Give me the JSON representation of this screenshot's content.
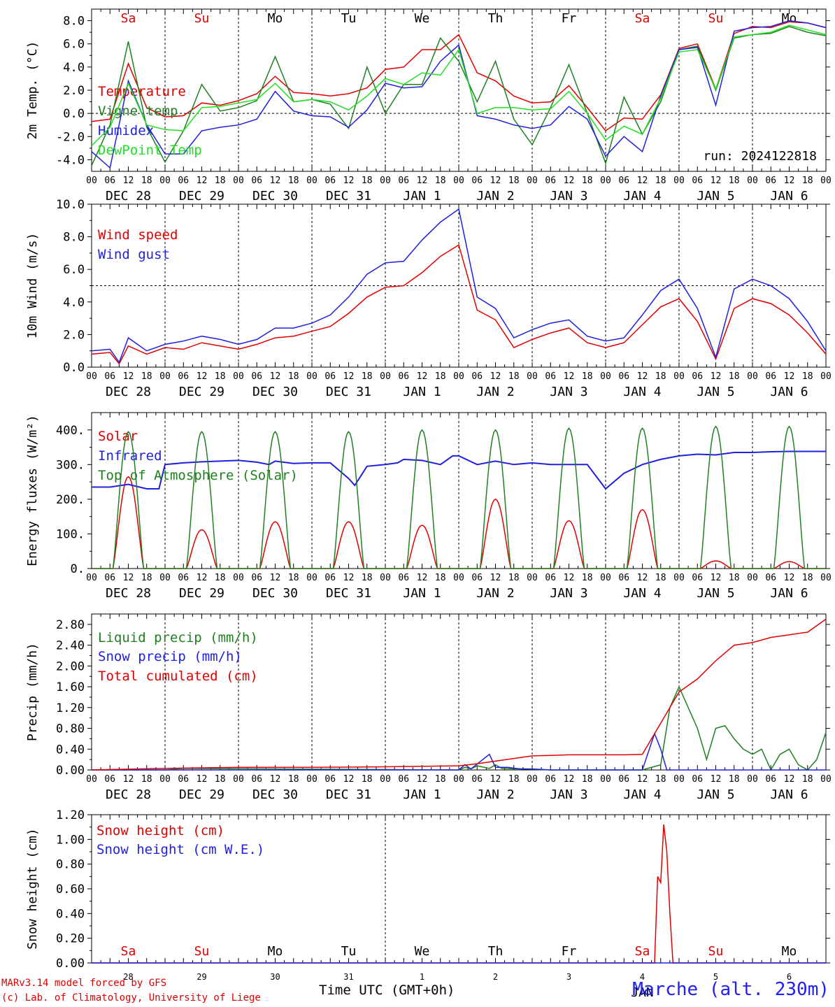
{
  "run_label": "run: 2024122818",
  "xlabel": "Time UTC (GMT+0h)",
  "station": "Marche (alt. 230m)",
  "credits": [
    "MARv3.14 model forced by GFS",
    "(c) Lab. of Climatology, University of Liege"
  ],
  "day_labels": [
    "Sa",
    "Su",
    "Mo",
    "Tu",
    "We",
    "Th",
    "Fr",
    "Sa",
    "Su",
    "Mo"
  ],
  "weekend_days": [
    "Sa",
    "Su"
  ],
  "date_labels": [
    "DEC 28",
    "DEC 29",
    "DEC 30",
    "DEC 31",
    "JAN  1",
    "JAN  2",
    "JAN  3",
    "JAN  4",
    "JAN  5",
    "JAN  6"
  ],
  "hour_ticks": [
    "00",
    "06",
    "12",
    "18"
  ],
  "bottom_numbers": [
    "28",
    "29",
    "30",
    "31",
    "1",
    "2",
    "3",
    "4",
    "5",
    "6"
  ],
  "bottom_month": "JAN",
  "colors": {
    "red": "#e00000",
    "green": "#208020",
    "blue": "#2020e0",
    "lightgreen": "#20e020",
    "weekend": "#e00000"
  },
  "chart_data": [
    {
      "type": "line",
      "ylabel": "2m Temp. (°C)",
      "ylim": [
        -5,
        9
      ],
      "yticks": [
        "8.0",
        "6.0",
        "4.0",
        "2.0",
        "0.0",
        "-2.0",
        "-4.0"
      ],
      "ytick_values": [
        8,
        6,
        4,
        2,
        0,
        -2,
        -4
      ],
      "ref_line": 0,
      "x_unit": "hours since DEC 28 00 UTC",
      "series": [
        {
          "name": "Temperature",
          "color": "red",
          "x": [
            0,
            6,
            12,
            18,
            24,
            30,
            36,
            42,
            48,
            54,
            60,
            66,
            72,
            78,
            84,
            90,
            96,
            102,
            108,
            114,
            120,
            126,
            132,
            138,
            144,
            150,
            156,
            162,
            168,
            174,
            180,
            186,
            192,
            198,
            204,
            210,
            216,
            222,
            228,
            234,
            240
          ],
          "y": [
            -0.7,
            -0.5,
            4.3,
            0.5,
            -0.3,
            -0.2,
            0.9,
            0.7,
            1.1,
            1.7,
            3.2,
            1.8,
            1.7,
            1.5,
            1.7,
            2.2,
            3.8,
            4.0,
            5.5,
            5.5,
            6.8,
            3.5,
            2.8,
            1.5,
            0.9,
            1.0,
            2.4,
            0.5,
            -1.5,
            -0.4,
            -0.5,
            1.6,
            5.6,
            6.0,
            2.1,
            6.9,
            7.5,
            7.4,
            7.9,
            7.8,
            7.4
          ]
        },
        {
          "name": "Vigne temp",
          "color": "green",
          "x": [
            0,
            6,
            12,
            18,
            24,
            30,
            36,
            42,
            48,
            54,
            60,
            66,
            72,
            78,
            84,
            90,
            96,
            102,
            108,
            114,
            120,
            126,
            132,
            138,
            144,
            150,
            156,
            162,
            168,
            174,
            180,
            186,
            192,
            198,
            204,
            210,
            216,
            222,
            228,
            234,
            240
          ],
          "y": [
            -4.5,
            -1.0,
            6.2,
            -1.2,
            -4.2,
            -1.5,
            2.5,
            0.2,
            0.5,
            1.1,
            4.9,
            1.0,
            1.2,
            0.8,
            -1.3,
            4.0,
            0.0,
            2.5,
            2.5,
            6.5,
            4.5,
            1.0,
            4.5,
            -0.5,
            -2.7,
            0.5,
            4.2,
            0.0,
            -4.3,
            1.4,
            -1.8,
            1.0,
            5.5,
            5.8,
            2.0,
            6.5,
            6.8,
            6.9,
            7.5,
            7.0,
            6.7
          ]
        },
        {
          "name": "Humidex",
          "color": "blue",
          "x": [
            0,
            6,
            12,
            18,
            24,
            30,
            36,
            42,
            48,
            54,
            60,
            66,
            72,
            78,
            84,
            90,
            96,
            102,
            108,
            114,
            120,
            126,
            132,
            138,
            144,
            150,
            156,
            162,
            168,
            174,
            180,
            186,
            192,
            198,
            204,
            210,
            216,
            222,
            228,
            234,
            240
          ],
          "y": [
            -3.3,
            -4.7,
            2.8,
            -1.0,
            -3.5,
            -3.5,
            -1.5,
            -1.2,
            -1.0,
            -0.5,
            1.9,
            0.2,
            -0.2,
            -0.3,
            -1.2,
            0.3,
            2.6,
            2.2,
            2.3,
            4.5,
            5.9,
            -0.2,
            -0.5,
            -1.0,
            -1.3,
            -1.0,
            0.6,
            -0.5,
            -3.7,
            -2.0,
            -3.3,
            1.5,
            5.5,
            5.7,
            0.7,
            7.1,
            7.4,
            7.5,
            8.0,
            7.8,
            7.4
          ]
        },
        {
          "name": "DewPoint Temp",
          "color": "lightgreen",
          "x": [
            0,
            6,
            12,
            18,
            24,
            30,
            36,
            42,
            48,
            54,
            60,
            66,
            72,
            78,
            84,
            90,
            96,
            102,
            108,
            114,
            120,
            126,
            132,
            138,
            144,
            150,
            156,
            162,
            168,
            174,
            180,
            186,
            192,
            198,
            204,
            210,
            216,
            222,
            228,
            234,
            240
          ],
          "y": [
            -2.8,
            -1.2,
            2.6,
            -1.0,
            -1.4,
            -1.5,
            0.5,
            0.6,
            0.9,
            1.2,
            2.6,
            1.0,
            1.2,
            1.0,
            0.3,
            1.5,
            3.0,
            2.5,
            3.5,
            3.3,
            5.5,
            0.0,
            0.5,
            0.5,
            0.3,
            0.4,
            1.9,
            0.0,
            -2.3,
            -1.1,
            -1.8,
            1.3,
            5.3,
            5.5,
            2.1,
            6.6,
            6.8,
            7.0,
            7.6,
            7.2,
            6.8
          ]
        }
      ]
    },
    {
      "type": "line",
      "ylabel": "10m Wind (m/s)",
      "ylim": [
        0,
        10
      ],
      "yticks": [
        "10.0",
        "8.0",
        "6.0",
        "4.0",
        "2.0",
        "0.0"
      ],
      "ytick_values": [
        10,
        8,
        6,
        4,
        2,
        0
      ],
      "ref_line": 5,
      "x_unit": "hours since DEC 28 00 UTC",
      "series": [
        {
          "name": "Wind speed",
          "color": "red",
          "x": [
            0,
            6,
            9,
            12,
            18,
            24,
            30,
            36,
            42,
            48,
            54,
            60,
            66,
            72,
            78,
            84,
            90,
            96,
            102,
            108,
            114,
            120,
            126,
            132,
            138,
            144,
            150,
            156,
            162,
            168,
            174,
            180,
            186,
            192,
            198,
            204,
            210,
            216,
            222,
            228,
            234,
            240
          ],
          "y": [
            0.8,
            0.9,
            0.2,
            1.3,
            0.8,
            1.2,
            1.1,
            1.5,
            1.3,
            1.1,
            1.4,
            1.8,
            1.9,
            2.2,
            2.5,
            3.3,
            4.3,
            4.9,
            5.0,
            5.8,
            6.8,
            7.5,
            3.5,
            2.9,
            1.2,
            1.7,
            2.1,
            2.4,
            1.5,
            1.2,
            1.5,
            2.6,
            3.7,
            4.2,
            2.8,
            0.5,
            3.6,
            4.2,
            3.9,
            3.2,
            2.1,
            0.8
          ]
        },
        {
          "name": "Wind gust",
          "color": "blue",
          "x": [
            0,
            6,
            9,
            12,
            18,
            24,
            30,
            36,
            42,
            48,
            54,
            60,
            66,
            72,
            78,
            84,
            90,
            96,
            102,
            108,
            114,
            120,
            126,
            132,
            138,
            144,
            150,
            156,
            162,
            168,
            174,
            180,
            186,
            192,
            198,
            204,
            210,
            216,
            222,
            228,
            234,
            240
          ],
          "y": [
            1.0,
            1.1,
            0.3,
            1.8,
            1.0,
            1.4,
            1.6,
            1.9,
            1.7,
            1.4,
            1.7,
            2.4,
            2.4,
            2.7,
            3.2,
            4.3,
            5.7,
            6.4,
            6.5,
            7.8,
            8.9,
            9.7,
            4.3,
            3.6,
            1.8,
            2.3,
            2.7,
            2.9,
            1.9,
            1.6,
            1.8,
            3.2,
            4.7,
            5.4,
            3.6,
            0.6,
            4.8,
            5.4,
            5.0,
            4.2,
            2.8,
            1.0
          ]
        }
      ]
    },
    {
      "type": "line",
      "ylabel": "Energy fluxes (W/m²)",
      "ylim": [
        0,
        450
      ],
      "yticks": [
        "400.",
        "300.",
        "200.",
        "100.",
        "0."
      ],
      "ytick_values": [
        400,
        300,
        200,
        100,
        0
      ],
      "x_unit": "hours since DEC 28 00 UTC",
      "series": [
        {
          "name": "Solar",
          "color": "red",
          "peaks": [
            265,
            112,
            135,
            135,
            125,
            200,
            138,
            170,
            22,
            20
          ]
        },
        {
          "name": "Infrared",
          "color": "blue",
          "x": [
            0,
            6,
            12,
            18,
            22,
            24,
            30,
            36,
            42,
            48,
            54,
            58,
            60,
            66,
            72,
            78,
            84,
            86,
            90,
            96,
            100,
            102,
            108,
            114,
            118,
            120,
            126,
            132,
            138,
            144,
            150,
            156,
            162,
            168,
            174,
            180,
            186,
            192,
            198,
            204,
            210,
            216,
            222,
            228,
            234,
            240
          ],
          "y": [
            235,
            235,
            243,
            230,
            230,
            300,
            305,
            308,
            310,
            312,
            307,
            300,
            310,
            303,
            305,
            305,
            260,
            240,
            295,
            300,
            305,
            315,
            312,
            300,
            325,
            325,
            300,
            310,
            300,
            305,
            300,
            300,
            300,
            230,
            275,
            300,
            315,
            325,
            330,
            328,
            335,
            335,
            337,
            338,
            338,
            338
          ]
        },
        {
          "name": "Top of Atmosphere (Solar)",
          "color": "green",
          "peaks": [
            395,
            395,
            395,
            395,
            400,
            400,
            405,
            405,
            410,
            410
          ]
        }
      ]
    },
    {
      "type": "line",
      "ylabel": "Precip (mm/h)",
      "ylim": [
        0,
        3.0
      ],
      "yticks": [
        "2.80",
        "2.40",
        "2.00",
        "1.60",
        "1.20",
        "0.80",
        "0.40",
        "0.00"
      ],
      "ytick_values": [
        2.8,
        2.4,
        2.0,
        1.6,
        1.2,
        0.8,
        0.4,
        0.0
      ],
      "x_unit": "hours since DEC 28 00 UTC",
      "series": [
        {
          "name": "Liquid precip (mm/h)",
          "color": "green",
          "x": [
            0,
            24,
            30,
            120,
            122,
            124,
            126,
            130,
            132,
            134,
            138,
            144,
            150,
            180,
            186,
            189,
            192,
            195,
            198,
            201,
            204,
            207,
            210,
            213,
            216,
            219,
            222,
            225,
            228,
            231,
            234,
            237,
            240
          ],
          "y": [
            0,
            0,
            0.03,
            0,
            0.05,
            0.02,
            0.08,
            0.03,
            0.1,
            0.03,
            0.02,
            0.02,
            0,
            0,
            0.1,
            1.2,
            1.6,
            1.2,
            0.8,
            0.2,
            0.8,
            0.85,
            0.6,
            0.4,
            0.3,
            0.4,
            0.0,
            0.3,
            0.4,
            0.1,
            0.0,
            0.2,
            0.72
          ]
        },
        {
          "name": "Snow precip (mm/h)",
          "color": "blue",
          "x": [
            0,
            120,
            122,
            124,
            130,
            132,
            136,
            140,
            150,
            180,
            184,
            186,
            188,
            240
          ],
          "y": [
            0,
            0,
            0.1,
            0.02,
            0.3,
            0.05,
            0.05,
            0.02,
            0,
            0,
            0.7,
            0.4,
            0,
            0
          ]
        },
        {
          "name": "Total cumulated (cm)",
          "color": "red",
          "x": [
            0,
            24,
            48,
            72,
            96,
            120,
            126,
            132,
            138,
            144,
            150,
            156,
            162,
            168,
            174,
            180,
            186,
            192,
            198,
            204,
            210,
            216,
            222,
            228,
            234,
            240
          ],
          "y": [
            0,
            0.03,
            0.05,
            0.05,
            0.06,
            0.08,
            0.12,
            0.17,
            0.22,
            0.27,
            0.28,
            0.29,
            0.29,
            0.29,
            0.29,
            0.3,
            0.9,
            1.5,
            1.75,
            2.1,
            2.4,
            2.45,
            2.55,
            2.6,
            2.65,
            2.9
          ]
        }
      ]
    },
    {
      "type": "line",
      "ylabel": "Snow height (cm)",
      "ylim": [
        0,
        1.2
      ],
      "yticks": [
        "1.20",
        "1.00",
        "0.80",
        "0.60",
        "0.40",
        "0.20",
        "0.00"
      ],
      "ytick_values": [
        1.2,
        1.0,
        0.8,
        0.6,
        0.4,
        0.2,
        0.0
      ],
      "x_unit": "hours since DEC 28 00 UTC",
      "series": [
        {
          "name": "Snow height (cm)",
          "color": "red",
          "x": [
            0,
            184,
            185,
            186,
            187,
            188,
            189,
            190,
            191,
            240
          ],
          "y": [
            0,
            0,
            0.7,
            0.65,
            1.12,
            0.9,
            0.4,
            0,
            0,
            0
          ]
        },
        {
          "name": "Snow height (cm W.E.)",
          "color": "blue",
          "x": [
            0,
            240
          ],
          "y": [
            0,
            0
          ]
        }
      ]
    }
  ]
}
